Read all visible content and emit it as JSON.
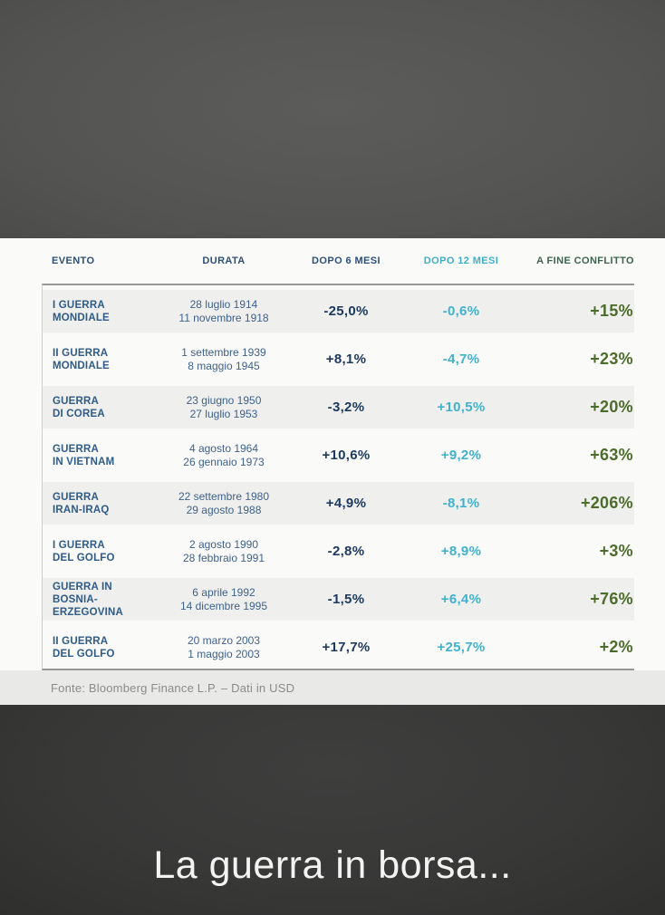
{
  "chart_data": {
    "type": "table",
    "caption": "La guerra in borsa...",
    "columns": [
      "EVENTO",
      "DURATA",
      "DOPO 6 MESI",
      "DOPO 12 MESI",
      "A FINE CONFLITTO"
    ],
    "rows": [
      {
        "event_line1": "I GUERRA",
        "event_line2": "MONDIALE",
        "date_start": "28 luglio 1914",
        "date_end": "11 novembre 1918",
        "after_6_months": "-25,0%",
        "after_12_months": "-0,6%",
        "at_end_of_conflict": "+15%"
      },
      {
        "event_line1": "II GUERRA",
        "event_line2": "MONDIALE",
        "date_start": "1 settembre 1939",
        "date_end": "8 maggio 1945",
        "after_6_months": "+8,1%",
        "after_12_months": "-4,7%",
        "at_end_of_conflict": "+23%"
      },
      {
        "event_line1": "GUERRA",
        "event_line2": "DI COREA",
        "date_start": "23 giugno 1950",
        "date_end": "27 luglio 1953",
        "after_6_months": "-3,2%",
        "after_12_months": "+10,5%",
        "at_end_of_conflict": "+20%"
      },
      {
        "event_line1": "GUERRA",
        "event_line2": "IN VIETNAM",
        "date_start": "4 agosto 1964",
        "date_end": "26 gennaio 1973",
        "after_6_months": "+10,6%",
        "after_12_months": "+9,2%",
        "at_end_of_conflict": "+63%"
      },
      {
        "event_line1": "GUERRA",
        "event_line2": "IRAN-IRAQ",
        "date_start": "22 settembre 1980",
        "date_end": "29 agosto 1988",
        "after_6_months": "+4,9%",
        "after_12_months": "-8,1%",
        "at_end_of_conflict": "+206%"
      },
      {
        "event_line1": "I GUERRA",
        "event_line2": "DEL GOLFO",
        "date_start": "2 agosto 1990",
        "date_end": "28 febbraio 1991",
        "after_6_months": "-2,8%",
        "after_12_months": "+8,9%",
        "at_end_of_conflict": "+3%"
      },
      {
        "event_line1": "GUERRA IN BOSNIA-",
        "event_line2": "ERZEGOVINA",
        "date_start": "6 aprile 1992",
        "date_end": "14 dicembre 1995",
        "after_6_months": "-1,5%",
        "after_12_months": "+6,4%",
        "at_end_of_conflict": "+76%"
      },
      {
        "event_line1": "II GUERRA",
        "event_line2": "DEL GOLFO",
        "date_start": "20 marzo 2003",
        "date_end": "1 maggio 2003",
        "after_6_months": "+17,7%",
        "after_12_months": "+25,7%",
        "at_end_of_conflict": "+2%"
      }
    ],
    "source": "Fonte: Bloomberg Finance L.P. – Dati in USD"
  },
  "colors": {
    "header_navy": "#2c4f78",
    "event_navy": "#2e5b88",
    "value_dark_navy": "#1d3a60",
    "cyan": "#3fafc9",
    "green_header": "#3a6450",
    "green_value": "#4c6c2c",
    "card_background": "#fafaf8",
    "row_stripe": "#efefed",
    "footer_band": "#e9e9e7",
    "background_top": "#545452",
    "background_bottom": "#383837",
    "caption_text": "#f3f3f3"
  }
}
